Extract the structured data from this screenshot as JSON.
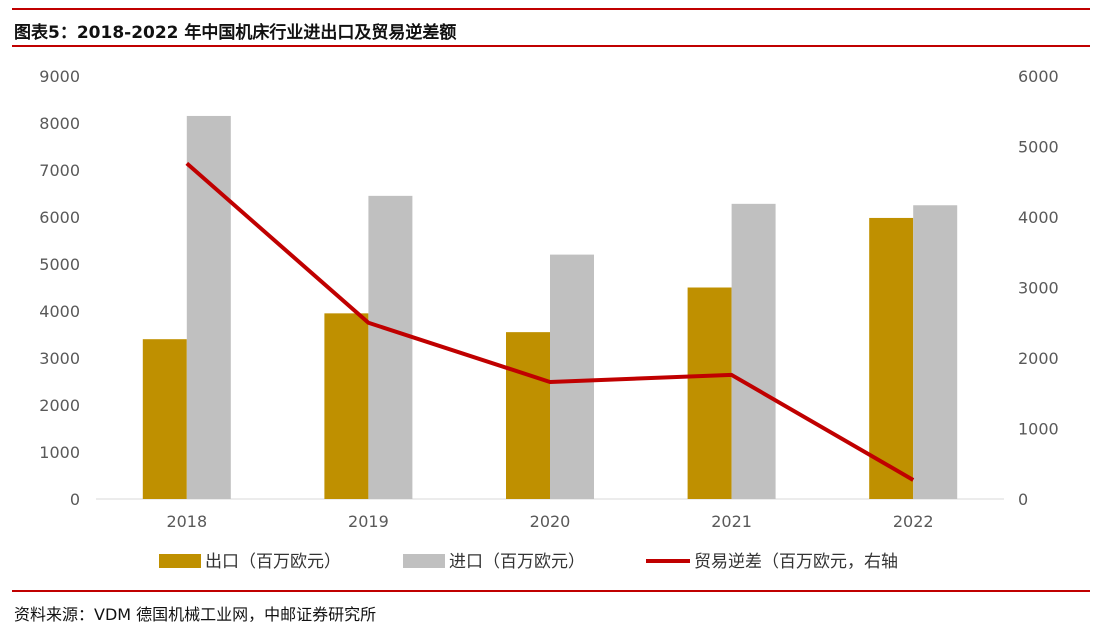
{
  "header": {
    "title": "图表5：2018-2022 年中国机床行业进出口及贸易逆差额"
  },
  "footer": {
    "source": "资料来源：VDM 德国机械工业网，中邮证券研究所"
  },
  "chart_data": {
    "type": "bar",
    "categories": [
      "2018",
      "2019",
      "2020",
      "2021",
      "2022"
    ],
    "series": [
      {
        "name": "出口（百万欧元）",
        "type": "bar",
        "axis": "left",
        "color": "#bf9000",
        "values": [
          3400,
          3950,
          3550,
          4500,
          5980
        ]
      },
      {
        "name": "进口（百万欧元）",
        "type": "bar",
        "axis": "left",
        "color": "#c0c0c0",
        "values": [
          8150,
          6450,
          5200,
          6280,
          6250
        ]
      },
      {
        "name": "贸易逆差（百万欧元，右轴",
        "type": "line",
        "axis": "right",
        "color": "#c00000",
        "values": [
          4760,
          2500,
          1660,
          1760,
          270
        ]
      }
    ],
    "y_left": {
      "min": 0,
      "max": 9000,
      "ticks": [
        "0",
        "1000",
        "2000",
        "3000",
        "4000",
        "5000",
        "6000",
        "7000",
        "8000",
        "9000"
      ]
    },
    "y_right": {
      "min": 0,
      "max": 6000,
      "ticks": [
        "0",
        "1000",
        "2000",
        "3000",
        "4000",
        "5000",
        "6000"
      ]
    },
    "grid": false,
    "legend_position": "bottom"
  }
}
